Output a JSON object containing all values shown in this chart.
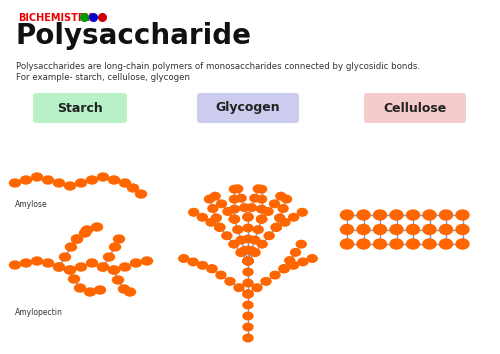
{
  "title": "Polysaccharide",
  "subtitle": "BICHEMISTRY",
  "description1": "Polysaccharides are long-chain polymers of monosaccharides connected by glycosidic bonds.",
  "description2": "For example- starch, cellulose, glycogen",
  "bg_color": "#ffffff",
  "node_color": "#FF6600",
  "bond_color": "#7799cc",
  "starch_label": "Starch",
  "glycogen_label": "Glycogen",
  "cellulose_label": "Cellulose",
  "amylose_label": "Amylose",
  "amylopectin_label": "Amylopectin",
  "starch_box_color": "#b8f0c8",
  "glycogen_box_color": "#ccccee",
  "cellulose_box_color": "#f5cccc",
  "dot_green": "#009900",
  "dot_blue": "#0000cc",
  "dot_red": "#cc0000",
  "title_color": "#111111",
  "subtitle_color": "#ee0000"
}
